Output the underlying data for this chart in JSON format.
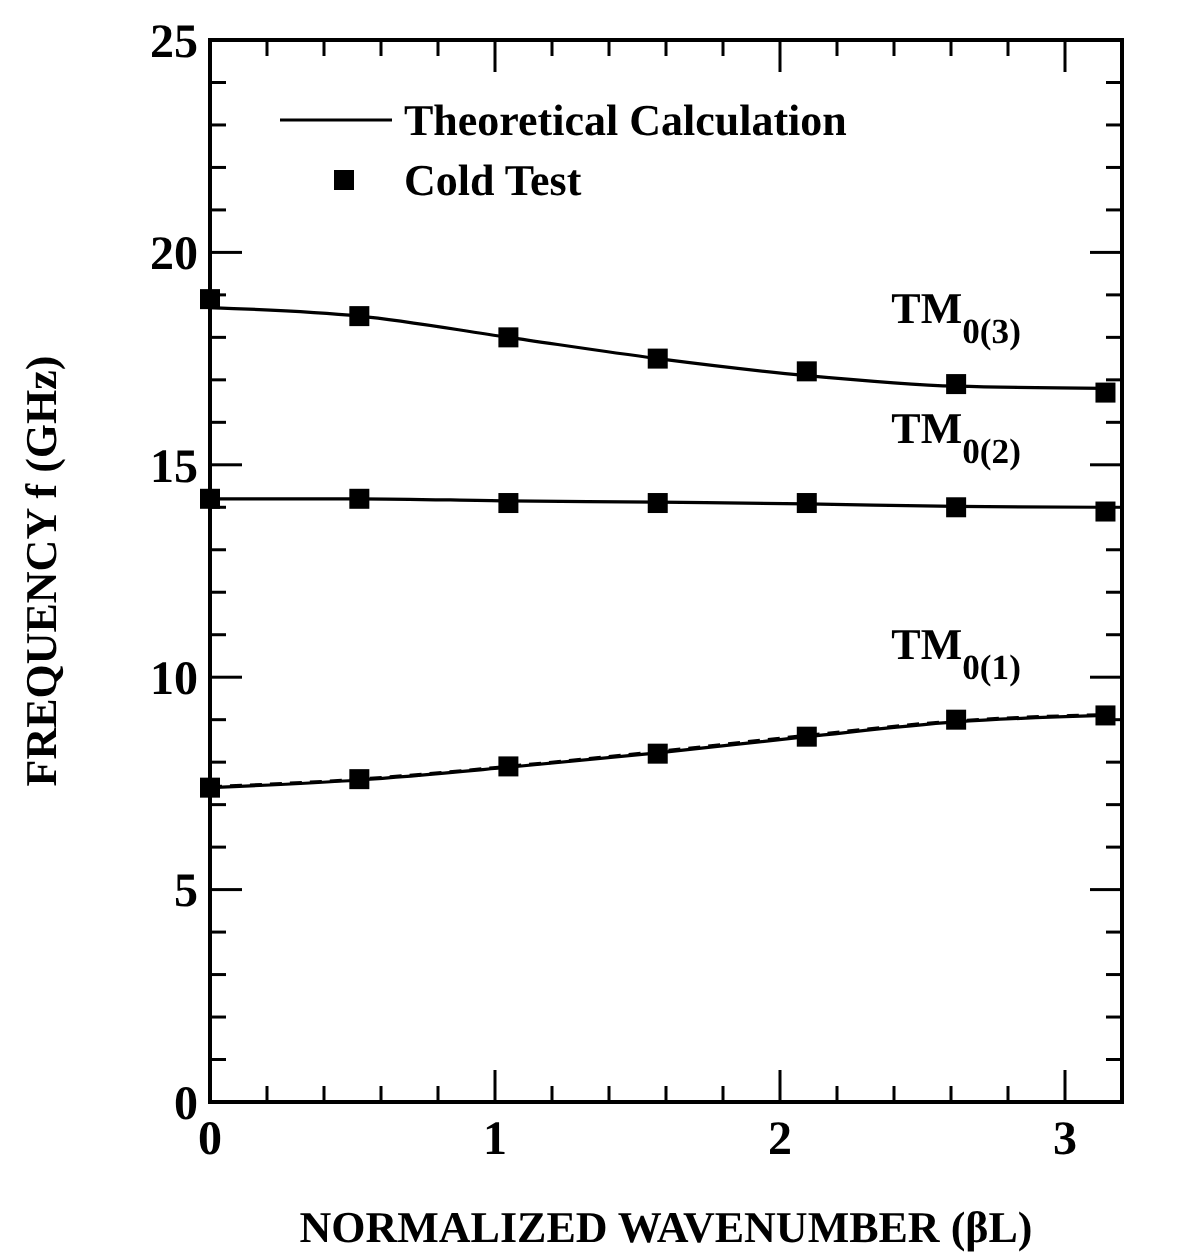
{
  "chart_data": {
    "type": "line",
    "xlabel": "NORMALIZED WAVENUMBER (βL)",
    "ylabel": "FREQUENCY f (GHz)",
    "xlim": [
      0,
      3.2
    ],
    "ylim": [
      0,
      25
    ],
    "xticks": [
      0,
      {
        "value": 0.2,
        "label": null
      },
      {
        "value": 0.4,
        "label": null
      },
      {
        "value": 0.6,
        "label": null
      },
      {
        "value": 0.8,
        "label": null
      },
      1,
      {
        "value": 1.2,
        "label": null
      },
      {
        "value": 1.4,
        "label": null
      },
      {
        "value": 1.6,
        "label": null
      },
      {
        "value": 1.8,
        "label": null
      },
      2,
      {
        "value": 2.2,
        "label": null
      },
      {
        "value": 2.4,
        "label": null
      },
      {
        "value": 2.6,
        "label": null
      },
      {
        "value": 2.8,
        "label": null
      },
      3
    ],
    "yticks": [
      0,
      {
        "value": 1,
        "label": null
      },
      {
        "value": 2,
        "label": null
      },
      {
        "value": 3,
        "label": null
      },
      {
        "value": 4,
        "label": null
      },
      5,
      {
        "value": 6,
        "label": null
      },
      {
        "value": 7,
        "label": null
      },
      {
        "value": 8,
        "label": null
      },
      {
        "value": 9,
        "label": null
      },
      10,
      {
        "value": 11,
        "label": null
      },
      {
        "value": 12,
        "label": null
      },
      {
        "value": 13,
        "label": null
      },
      {
        "value": 14,
        "label": null
      },
      15,
      {
        "value": 16,
        "label": null
      },
      {
        "value": 17,
        "label": null
      },
      {
        "value": 18,
        "label": null
      },
      {
        "value": 19,
        "label": null
      },
      20,
      {
        "value": 21,
        "label": null
      },
      {
        "value": 22,
        "label": null
      },
      {
        "value": 23,
        "label": null
      },
      {
        "value": 24,
        "label": null
      },
      25
    ],
    "legend": "top left",
    "grid": false,
    "series": [
      {
        "name": "Theoretical Calculation",
        "color": "#000000",
        "line_style": "solid",
        "marker": "none",
        "x": [
          0,
          0.524,
          1.047,
          1.571,
          2.094,
          2.618,
          3.142
        ],
        "values": [
          7.4,
          7.58,
          7.88,
          8.22,
          8.6,
          8.95,
          9.1
        ]
      },
      {
        "color": "#000000",
        "line_style": "solid",
        "marker": "none",
        "x": [
          0,
          0.524,
          1.047,
          1.571,
          2.094,
          2.618,
          3.142
        ],
        "values": [
          14.2,
          14.2,
          14.15,
          14.12,
          14.08,
          14.02,
          14.0
        ]
      },
      {
        "color": "#000000",
        "line_style": "solid",
        "marker": "none",
        "x": [
          0,
          0.524,
          1.047,
          1.571,
          2.094,
          2.618,
          3.142
        ],
        "values": [
          18.7,
          18.5,
          18.0,
          17.5,
          17.1,
          16.85,
          16.8
        ]
      },
      {
        "color": "#000000",
        "line_style": "dashed",
        "marker": "none",
        "x": [
          0,
          0.524,
          1.047,
          1.571,
          2.094,
          2.618,
          3.142
        ],
        "values": [
          7.42,
          7.6,
          7.9,
          8.25,
          8.63,
          8.97,
          9.12
        ]
      },
      {
        "name": "Cold Test",
        "type": "scatter",
        "color": "#000000",
        "marker": "square",
        "x": [
          0,
          0.524,
          1.047,
          1.571,
          2.094,
          2.618,
          3.142,
          0,
          0.524,
          1.047,
          1.571,
          2.094,
          2.618,
          3.142,
          0,
          0.524,
          1.047,
          1.571,
          2.094,
          2.618,
          3.142
        ],
        "values": [
          7.4,
          7.6,
          7.9,
          8.2,
          8.6,
          9.0,
          9.1,
          14.2,
          14.2,
          14.1,
          14.1,
          14.1,
          14.0,
          13.9,
          18.9,
          18.5,
          18.0,
          17.5,
          17.2,
          16.9,
          16.7
        ]
      }
    ],
    "annotations": [
      "TM$_{0(1)}$",
      "TM$_{0(2)}$",
      "TM$_{0(3)}$"
    ]
  }
}
